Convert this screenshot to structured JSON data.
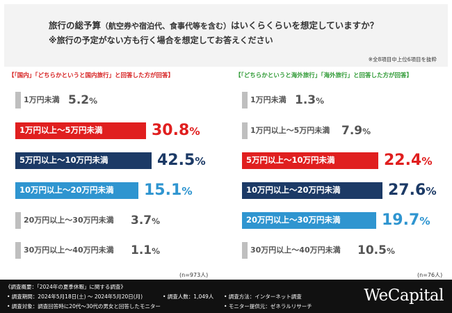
{
  "header": {
    "question_line1_main": "旅行の総予算",
    "question_line1_paren": "（航空券や宿泊代、食事代等を含む）",
    "question_line1_tail": "はいくらくらいを想定していますか？",
    "question_line2": "※旅行の予定がない方も行く場合を想定してお答えください",
    "selection_note": "※全8項目中上位6項目を抜粋"
  },
  "chart_data": [
    {
      "type": "bar",
      "title": "【「国内」「どちらかというと国内旅行」と回答した方が回答】",
      "categories": [
        "1万円未満",
        "1万円以上〜5万円未満",
        "5万円以上〜10万円未満",
        "10万円以上〜20万円未満",
        "20万円以上〜30万円未満",
        "30万円以上〜40万円未満"
      ],
      "values": [
        5.2,
        30.8,
        42.5,
        15.1,
        3.7,
        1.1
      ],
      "unit": "%",
      "bar_colors": [
        "#bfbfbf",
        "#e01f1f",
        "#1c3a66",
        "#2f95d0",
        "#bfbfbf",
        "#bfbfbf"
      ],
      "highlight_text_colors": [
        "#555555",
        "#e01f1f",
        "#1c3a66",
        "#2f95d0",
        "#555555",
        "#555555"
      ],
      "sample_size": "(n=973人)"
    },
    {
      "type": "bar",
      "title": "【「どちらかというと海外旅行」「海外旅行」と回答した方が回答】",
      "categories": [
        "1万円未満",
        "1万円以上〜5万円未満",
        "5万円以上〜10万円未満",
        "10万円以上〜20万円未満",
        "20万円以上〜30万円未満",
        "30万円以上〜40万円未満"
      ],
      "values": [
        1.3,
        7.9,
        22.4,
        27.6,
        19.7,
        10.5
      ],
      "unit": "%",
      "bar_colors": [
        "#bfbfbf",
        "#bfbfbf",
        "#e01f1f",
        "#1c3a66",
        "#2f95d0",
        "#bfbfbf"
      ],
      "highlight_text_colors": [
        "#555555",
        "#555555",
        "#e01f1f",
        "#1c3a66",
        "#2f95d0",
        "#555555"
      ],
      "sample_size": "(n=76人)"
    }
  ],
  "footer": {
    "overview": "《調査概要：「2024年の夏季休暇」に関する調査》",
    "period": "• 調査期間：2024年5月18日(土) 〜 2024年5月20日(月)",
    "respondents": "• 調査人数：1,049人",
    "method": "• 調査方法：インターネット調査",
    "target": "• 調査対象：調査回答時に20代〜30代の男女と回答したモニター",
    "provider": "• モニター提供元：ゼネラルリサーチ",
    "brand": "WeCapital"
  }
}
